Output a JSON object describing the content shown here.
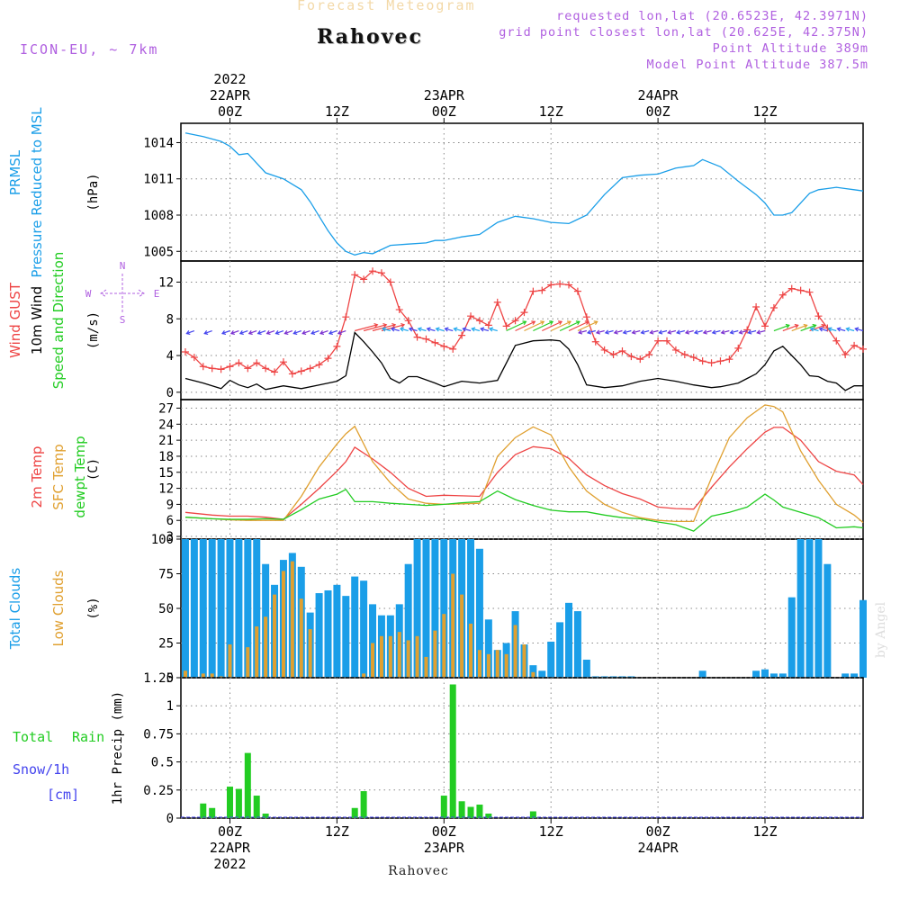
{
  "header": {
    "title": "Forecast Meteogram",
    "location": "Rahovec",
    "model": "ICON-EU, ~ 7km",
    "requested": "requested lon,lat (20.6523E, 42.3971N)",
    "gridpoint": "grid point closest lon,lat (20.625E, 42.375N)",
    "point_altitude": "Point Altitude 389m",
    "model_altitude": "Model Point Altitude 387.5m",
    "footer": "Rahovec",
    "watermark": "by Angel"
  },
  "time_axis": {
    "top_ticks": [
      {
        "h": 0,
        "lines": [
          "2022",
          "22APR",
          "00Z"
        ]
      },
      {
        "h": 12,
        "lines": [
          "12Z"
        ]
      },
      {
        "h": 24,
        "lines": [
          "23APR",
          "00Z"
        ]
      },
      {
        "h": 36,
        "lines": [
          "12Z"
        ]
      },
      {
        "h": 48,
        "lines": [
          "24APR",
          "00Z"
        ]
      },
      {
        "h": 60,
        "lines": [
          "12Z"
        ]
      }
    ],
    "bottom_ticks": [
      {
        "h": 0,
        "lines": [
          "00Z",
          "22APR",
          "2022"
        ]
      },
      {
        "h": 12,
        "lines": [
          "12Z"
        ]
      },
      {
        "h": 24,
        "lines": [
          "00Z",
          "23APR"
        ]
      },
      {
        "h": 36,
        "lines": [
          "12Z"
        ]
      },
      {
        "h": 48,
        "lines": [
          "00Z",
          "24APR"
        ]
      },
      {
        "h": 60,
        "lines": [
          "12Z"
        ]
      }
    ],
    "range_hours": [
      -5.5,
      71
    ]
  },
  "colors": {
    "pressure": "#1a9ee8",
    "gust": "#ee4444",
    "wind": "#000000",
    "temp2m": "#ee4444",
    "sfctemp": "#e0a030",
    "dewpt": "#22cc22",
    "clouds_total": "#1a9ee8",
    "clouds_low": "#e0a030",
    "rain": "#22cc22",
    "snow": "#4444ee",
    "purple": "#b060e0"
  },
  "chart_data": [
    {
      "type": "line",
      "panel": "pressure",
      "labels": [
        "PRMSL",
        "Pressure Reduced to MSL"
      ],
      "ylabel": "(hPa)",
      "ylim": [
        1004.2,
        1015.6
      ],
      "yticks": [
        1005,
        1008,
        1011,
        1014
      ],
      "series": [
        {
          "name": "PRMSL",
          "x": [
            -5,
            -3,
            -1,
            0,
            1,
            2,
            3,
            4,
            6,
            8,
            9,
            10,
            11,
            12,
            13,
            14,
            15,
            16,
            18,
            20,
            22,
            23,
            24,
            26,
            27,
            28,
            30,
            32,
            34,
            36,
            38,
            40,
            42,
            44,
            46,
            48,
            50,
            52,
            53,
            55,
            57,
            59,
            60,
            61,
            62,
            63,
            64,
            65,
            66,
            67,
            68,
            69,
            70,
            71
          ],
          "y": [
            1014.8,
            1014.5,
            1014.1,
            1013.7,
            1013.0,
            1013.1,
            1012.3,
            1011.5,
            1011.0,
            1010.1,
            1009.1,
            1007.9,
            1006.7,
            1005.7,
            1005.0,
            1004.7,
            1004.9,
            1004.8,
            1005.5,
            1005.6,
            1005.7,
            1005.9,
            1005.9,
            1006.2,
            1006.3,
            1006.4,
            1007.4,
            1007.9,
            1007.7,
            1007.4,
            1007.3,
            1008.0,
            1009.7,
            1011.1,
            1011.3,
            1011.4,
            1011.9,
            1012.1,
            1012.6,
            1012.0,
            1010.8,
            1009.7,
            1009.0,
            1008.0,
            1008.0,
            1008.2,
            1009.0,
            1009.8,
            1010.1,
            1010.2,
            1010.3,
            1010.2,
            1010.1,
            1010.0
          ]
        }
      ]
    },
    {
      "type": "line",
      "panel": "wind",
      "labels": [
        "Wind GUST",
        "10m Wind",
        "Speed and Direction"
      ],
      "ylabel": "(m/s)",
      "compass": [
        "N",
        "W",
        "E",
        "S"
      ],
      "ylim": [
        -0.8,
        14.3
      ],
      "yticks": [
        0,
        4,
        8,
        12
      ],
      "series": [
        {
          "name": "Wind GUST",
          "x": [
            -5,
            -4,
            -3,
            -2,
            -1,
            0,
            1,
            2,
            3,
            4,
            5,
            6,
            7,
            8,
            9,
            10,
            11,
            12,
            13,
            14,
            15,
            16,
            17,
            18,
            19,
            20,
            21,
            22,
            23,
            24,
            25,
            26,
            27,
            28,
            29,
            30,
            31,
            32,
            33,
            34,
            35,
            36,
            37,
            38,
            39,
            40,
            41,
            42,
            43,
            44,
            45,
            46,
            47,
            48,
            49,
            50,
            51,
            52,
            53,
            54,
            55,
            56,
            57,
            58,
            59,
            60,
            61,
            62,
            63,
            64,
            65,
            66,
            67,
            68,
            69,
            70,
            71
          ],
          "y": [
            4.4,
            3.8,
            2.8,
            2.6,
            2.5,
            2.8,
            3.2,
            2.6,
            3.2,
            2.6,
            2.2,
            3.3,
            2.0,
            2.3,
            2.6,
            3.0,
            3.7,
            5.0,
            8.2,
            12.8,
            12.3,
            13.2,
            13.0,
            12.0,
            9.0,
            7.8,
            6.0,
            5.8,
            5.4,
            5.0,
            4.7,
            6.2,
            8.3,
            7.8,
            7.3,
            9.8,
            7.2,
            7.8,
            8.7,
            11.0,
            11.1,
            11.7,
            11.8,
            11.7,
            11.0,
            8.2,
            5.5,
            4.6,
            4.1,
            4.5,
            3.9,
            3.6,
            4.1,
            5.6,
            5.6,
            4.6,
            4.1,
            3.8,
            3.4,
            3.2,
            3.4,
            3.6,
            4.8,
            6.8,
            9.3,
            7.2,
            9.2,
            10.6,
            11.3,
            11.1,
            10.9,
            8.3,
            7.0,
            5.6,
            4.1,
            5.1,
            4.7
          ]
        },
        {
          "name": "10m Wind",
          "x": [
            -5,
            -3,
            -1,
            0,
            1,
            2,
            3,
            4,
            6,
            8,
            10,
            12,
            13,
            14,
            15,
            16,
            17,
            18,
            19,
            20,
            21,
            23,
            24,
            26,
            27,
            28,
            30,
            32,
            34,
            36,
            37,
            38,
            39,
            40,
            42,
            44,
            46,
            48,
            50,
            52,
            54,
            55,
            56,
            57,
            58,
            59,
            60,
            61,
            62,
            63,
            64,
            65,
            66,
            67,
            68,
            69,
            70,
            71
          ],
          "y": [
            1.5,
            1.0,
            0.4,
            1.3,
            0.8,
            0.5,
            0.9,
            0.3,
            0.7,
            0.4,
            0.8,
            1.2,
            1.8,
            6.5,
            5.5,
            4.4,
            3.2,
            1.5,
            1.0,
            1.7,
            1.7,
            1.0,
            0.6,
            1.2,
            1.1,
            1.0,
            1.3,
            5.1,
            5.6,
            5.7,
            5.6,
            4.7,
            3.0,
            0.8,
            0.5,
            0.7,
            1.2,
            1.5,
            1.2,
            0.8,
            0.5,
            0.6,
            0.8,
            1.0,
            1.5,
            2.0,
            3.0,
            4.5,
            5.0,
            4.0,
            3.0,
            1.8,
            1.7,
            1.2,
            1.0,
            0.2,
            0.7,
            0.7
          ]
        }
      ]
    },
    {
      "type": "line",
      "panel": "temperature",
      "labels": [
        "2m Temp",
        "SFC Temp",
        "dewpt Temp"
      ],
      "ylabel": "(C)",
      "ylim": [
        2.5,
        28.6
      ],
      "yticks": [
        3,
        6,
        9,
        12,
        15,
        18,
        21,
        24,
        27
      ],
      "series": [
        {
          "name": "2m Temp",
          "x": [
            -5,
            -2,
            0,
            2,
            4,
            6,
            8,
            10,
            12,
            13,
            14,
            16,
            18,
            20,
            22,
            24,
            26,
            28,
            30,
            32,
            34,
            36,
            38,
            40,
            42,
            44,
            46,
            48,
            50,
            52,
            54,
            56,
            58,
            60,
            61,
            62,
            64,
            66,
            68,
            70,
            71
          ],
          "y": [
            7.5,
            7.0,
            6.8,
            6.8,
            6.6,
            6.2,
            9.0,
            12.0,
            15.2,
            17.0,
            19.7,
            17.5,
            15.0,
            12.0,
            10.5,
            10.7,
            10.6,
            10.5,
            15.0,
            18.3,
            19.8,
            19.4,
            17.6,
            14.5,
            12.5,
            11.0,
            10.0,
            8.5,
            8.2,
            8.1,
            12.2,
            16.0,
            19.4,
            22.5,
            23.4,
            23.4,
            21.0,
            17.0,
            15.2,
            14.5,
            12.7
          ]
        },
        {
          "name": "SFC Temp",
          "x": [
            -5,
            -2,
            0,
            2,
            4,
            6,
            8,
            10,
            12,
            13,
            14,
            16,
            18,
            20,
            22,
            24,
            26,
            28,
            30,
            32,
            34,
            36,
            38,
            40,
            42,
            44,
            46,
            48,
            50,
            52,
            54,
            56,
            58,
            60,
            61,
            62,
            64,
            66,
            68,
            70,
            71
          ],
          "y": [
            6.6,
            6.3,
            6.1,
            6.0,
            6.0,
            6.0,
            10.5,
            16.0,
            20.3,
            22.2,
            23.6,
            17.0,
            13.0,
            10.0,
            9.2,
            9.0,
            9.1,
            9.2,
            18.0,
            21.5,
            23.5,
            22.0,
            16.0,
            11.5,
            9.0,
            7.5,
            6.5,
            6.0,
            5.8,
            5.8,
            14.0,
            21.5,
            25.2,
            27.6,
            27.3,
            26.3,
            19.0,
            13.5,
            9.0,
            7.0,
            5.6
          ]
        },
        {
          "name": "dewpt Temp",
          "x": [
            -5,
            -2,
            0,
            2,
            4,
            6,
            8,
            10,
            12,
            13,
            14,
            16,
            18,
            20,
            22,
            24,
            26,
            28,
            30,
            32,
            34,
            36,
            38,
            40,
            42,
            44,
            46,
            48,
            50,
            52,
            54,
            56,
            58,
            60,
            61,
            62,
            64,
            66,
            68,
            70,
            71
          ],
          "y": [
            6.6,
            6.3,
            6.2,
            6.2,
            6.3,
            6.2,
            8.0,
            10.0,
            10.9,
            11.8,
            9.5,
            9.5,
            9.2,
            9.0,
            8.8,
            9.0,
            9.3,
            9.5,
            11.5,
            9.9,
            8.8,
            7.9,
            7.6,
            7.6,
            7.0,
            6.5,
            6.3,
            5.7,
            5.2,
            4.0,
            6.8,
            7.5,
            8.5,
            10.9,
            9.8,
            8.5,
            7.5,
            6.5,
            4.6,
            4.8,
            4.6
          ]
        }
      ]
    },
    {
      "type": "bar",
      "panel": "clouds",
      "labels": [
        "Total Clouds",
        "Low Clouds"
      ],
      "ylabel": "(%)",
      "ylim": [
        0,
        100
      ],
      "yticks": [
        0,
        25,
        50,
        75,
        100
      ],
      "x": [
        -5,
        -4,
        -3,
        -2,
        -1,
        0,
        1,
        2,
        3,
        4,
        5,
        6,
        7,
        8,
        9,
        10,
        11,
        12,
        13,
        14,
        15,
        16,
        17,
        18,
        19,
        20,
        21,
        22,
        23,
        24,
        25,
        26,
        27,
        28,
        29,
        30,
        31,
        32,
        33,
        34,
        35,
        36,
        37,
        38,
        39,
        40,
        41,
        42,
        43,
        44,
        45,
        46,
        47,
        48,
        49,
        50,
        51,
        52,
        53,
        54,
        55,
        56,
        57,
        58,
        59,
        60,
        61,
        62,
        63,
        64,
        65,
        66,
        67,
        68,
        69,
        70,
        71
      ],
      "series": [
        {
          "name": "Total Clouds",
          "values": [
            100,
            100,
            100,
            100,
            100,
            100,
            100,
            100,
            100,
            82,
            67,
            85,
            90,
            80,
            47,
            61,
            63,
            67,
            59,
            73,
            70,
            53,
            45,
            45,
            53,
            82,
            100,
            100,
            100,
            100,
            100,
            100,
            100,
            93,
            42,
            20,
            25,
            48,
            24,
            9,
            5,
            26,
            40,
            54,
            48,
            13,
            1,
            1,
            1,
            1,
            1,
            0,
            0,
            0,
            0,
            0,
            0,
            0,
            5,
            0,
            0,
            0,
            0,
            0,
            5,
            6,
            3,
            3,
            58,
            100,
            100,
            100,
            82,
            0,
            3,
            3,
            56
          ]
        },
        {
          "name": "Low Clouds",
          "values": [
            5,
            0,
            3,
            3,
            1,
            24,
            0,
            22,
            37,
            44,
            60,
            77,
            84,
            57,
            35,
            0,
            0,
            0,
            0,
            0,
            3,
            25,
            30,
            30,
            33,
            27,
            30,
            15,
            34,
            46,
            75,
            60,
            39,
            20,
            17,
            20,
            17,
            38,
            24,
            4,
            0,
            0,
            0,
            0,
            0,
            0,
            0,
            0,
            0,
            0,
            0,
            0,
            0,
            0,
            0,
            0,
            0,
            0,
            0,
            0,
            0,
            0,
            0,
            0,
            0,
            0,
            0,
            0,
            0,
            0,
            0,
            0,
            0,
            0,
            0,
            0,
            0
          ]
        }
      ]
    },
    {
      "type": "bar",
      "panel": "precip",
      "labels": [
        "Total",
        "Rain",
        "Snow/1h",
        "[cm]"
      ],
      "ylabel": "1hr Precip (mm)",
      "ylim": [
        0,
        1.25
      ],
      "yticks": [
        0,
        0.25,
        0.5,
        0.75,
        1,
        1.25
      ],
      "ytick_labels": [
        "0",
        "0.25",
        "0.5",
        "0.75",
        "1",
        "1.25"
      ],
      "x": [
        -3,
        -2,
        0,
        1,
        2,
        3,
        4,
        14,
        15,
        24,
        25,
        26,
        27,
        28,
        29,
        34
      ],
      "series": [
        {
          "name": "Rain",
          "values": [
            0.13,
            0.09,
            0.28,
            0.26,
            0.58,
            0.2,
            0.04,
            0.09,
            0.24,
            0.2,
            1.19,
            0.15,
            0.1,
            0.12,
            0.04,
            0.06
          ]
        }
      ]
    }
  ]
}
